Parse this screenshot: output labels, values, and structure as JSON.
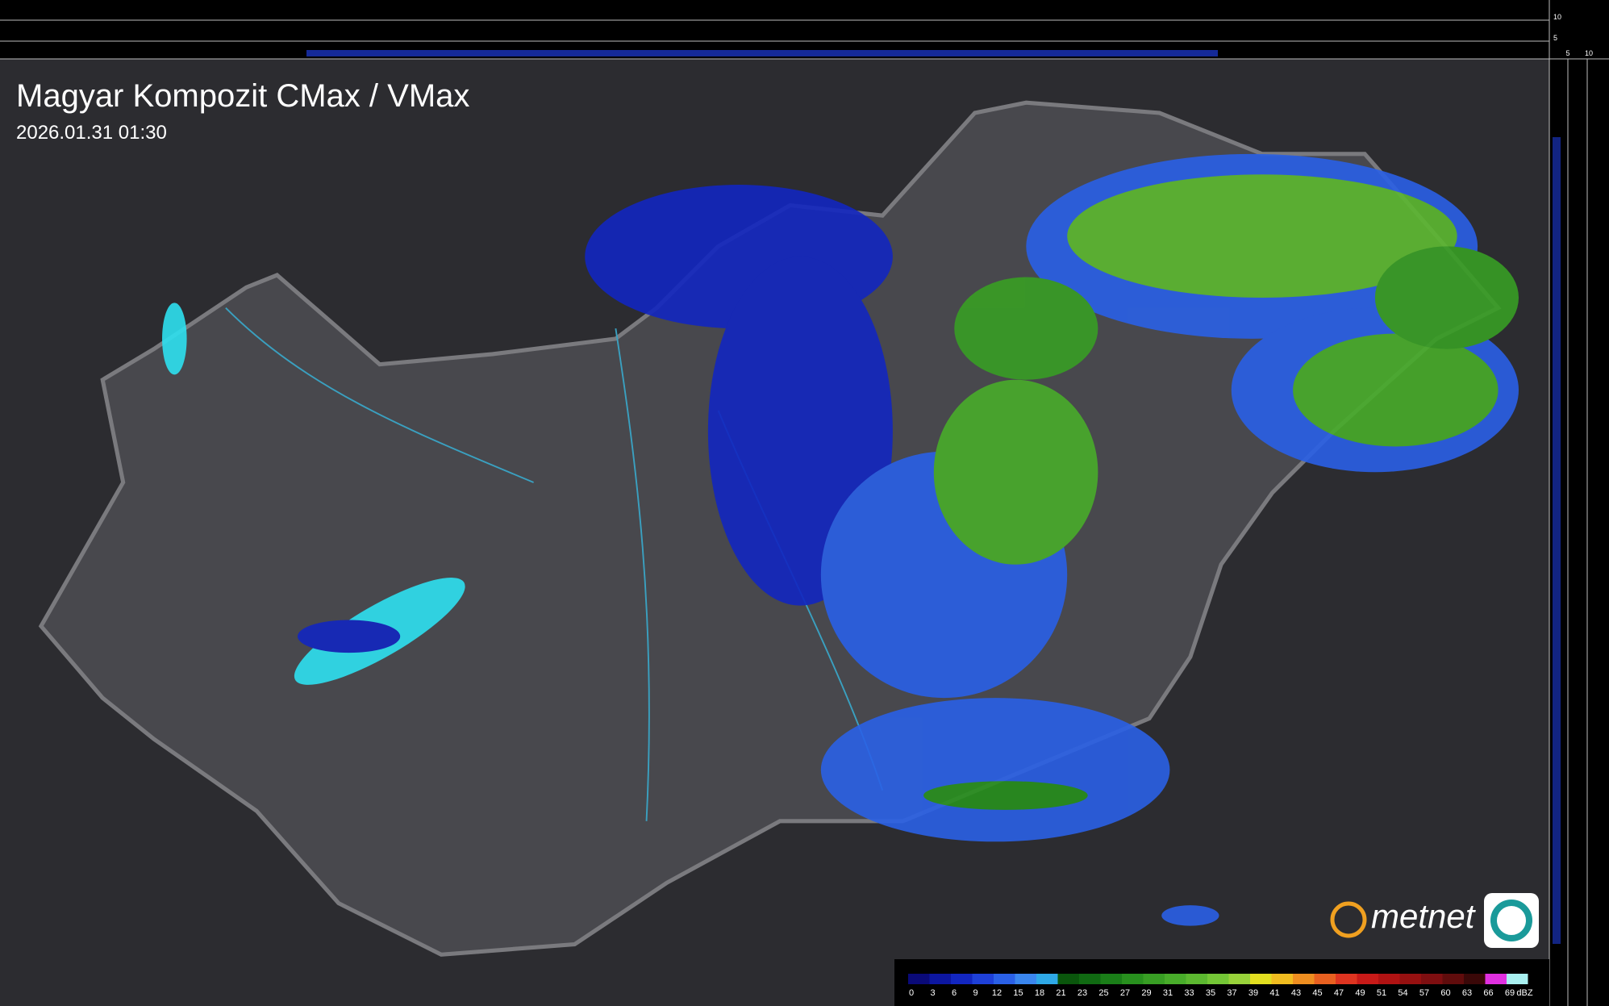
{
  "header": {
    "title": "Magyar Kompozit CMax / VMax",
    "timestamp": "2026.01.31 01:30"
  },
  "side_axis": {
    "top_labels": [
      "10",
      "5"
    ],
    "right_labels": [
      "5",
      "10"
    ]
  },
  "logo": {
    "text": "metnet"
  },
  "legend": {
    "unit": "dBZ",
    "entries": [
      {
        "value": 0,
        "color": "#0a0a78"
      },
      {
        "value": 3,
        "color": "#0c16a0"
      },
      {
        "value": 6,
        "color": "#1226c0"
      },
      {
        "value": 9,
        "color": "#1e40d8"
      },
      {
        "value": 12,
        "color": "#2a60e6"
      },
      {
        "value": 15,
        "color": "#3a86ee"
      },
      {
        "value": 18,
        "color": "#2ea8e6"
      },
      {
        "value": 21,
        "color": "#0a560c"
      },
      {
        "value": 23,
        "color": "#106a12"
      },
      {
        "value": 25,
        "color": "#1a7e18"
      },
      {
        "value": 27,
        "color": "#28901e"
      },
      {
        "value": 29,
        "color": "#389e24"
      },
      {
        "value": 31,
        "color": "#48ac2a"
      },
      {
        "value": 33,
        "color": "#5cb830"
      },
      {
        "value": 35,
        "color": "#74c636"
      },
      {
        "value": 37,
        "color": "#98d23a"
      },
      {
        "value": 39,
        "color": "#e2de20"
      },
      {
        "value": 41,
        "color": "#f0bc20"
      },
      {
        "value": 43,
        "color": "#ee8e20"
      },
      {
        "value": 45,
        "color": "#e86020"
      },
      {
        "value": 47,
        "color": "#de3420"
      },
      {
        "value": 49,
        "color": "#c81a18"
      },
      {
        "value": 51,
        "color": "#b01212"
      },
      {
        "value": 54,
        "color": "#961010"
      },
      {
        "value": 57,
        "color": "#7e0e10"
      },
      {
        "value": 60,
        "color": "#600c0c"
      },
      {
        "value": 63,
        "color": "#3a0808"
      },
      {
        "value": 66,
        "color": "#e030e0"
      },
      {
        "value": 69,
        "color": "#a8f0f0"
      }
    ]
  }
}
